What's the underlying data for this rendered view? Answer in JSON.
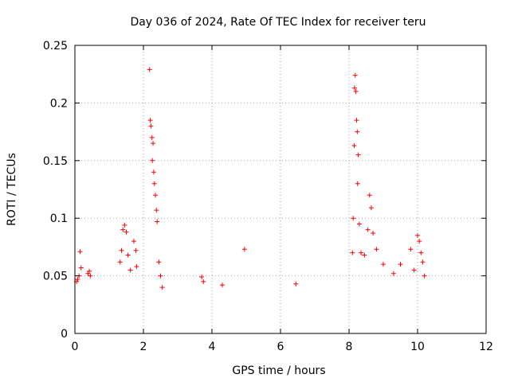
{
  "chart_data": {
    "type": "scatter",
    "title": "Day 036 of 2024, Rate Of TEC Index for receiver teru",
    "xlabel": "GPS time / hours",
    "ylabel": "ROTI / TECUs",
    "xlim": [
      0,
      12
    ],
    "ylim": [
      0,
      0.25
    ],
    "x_ticks": [
      "0",
      "2",
      "4",
      "6",
      "8",
      "10",
      "12"
    ],
    "y_ticks": [
      "0",
      "0.05",
      "0.1",
      "0.15",
      "0.2",
      "0.25"
    ],
    "grid": true,
    "marker": "+",
    "color": "#ff0000",
    "series": [
      {
        "name": "ROTI",
        "points": [
          [
            0.05,
            0.045
          ],
          [
            0.08,
            0.047
          ],
          [
            0.12,
            0.05
          ],
          [
            0.15,
            0.071
          ],
          [
            0.18,
            0.057
          ],
          [
            0.38,
            0.052
          ],
          [
            0.42,
            0.054
          ],
          [
            0.45,
            0.05
          ],
          [
            1.32,
            0.062
          ],
          [
            1.36,
            0.072
          ],
          [
            1.4,
            0.09
          ],
          [
            1.45,
            0.094
          ],
          [
            1.5,
            0.088
          ],
          [
            1.55,
            0.068
          ],
          [
            1.62,
            0.055
          ],
          [
            1.72,
            0.08
          ],
          [
            1.78,
            0.072
          ],
          [
            1.8,
            0.058
          ],
          [
            2.18,
            0.229
          ],
          [
            2.2,
            0.185
          ],
          [
            2.22,
            0.18
          ],
          [
            2.25,
            0.17
          ],
          [
            2.26,
            0.15
          ],
          [
            2.28,
            0.165
          ],
          [
            2.3,
            0.14
          ],
          [
            2.32,
            0.13
          ],
          [
            2.35,
            0.12
          ],
          [
            2.38,
            0.107
          ],
          [
            2.4,
            0.097
          ],
          [
            2.45,
            0.062
          ],
          [
            2.5,
            0.05
          ],
          [
            2.55,
            0.04
          ],
          [
            3.7,
            0.049
          ],
          [
            3.75,
            0.045
          ],
          [
            4.3,
            0.042
          ],
          [
            4.95,
            0.073
          ],
          [
            6.45,
            0.043
          ],
          [
            8.1,
            0.07
          ],
          [
            8.12,
            0.1
          ],
          [
            8.15,
            0.163
          ],
          [
            8.16,
            0.213
          ],
          [
            8.18,
            0.224
          ],
          [
            8.2,
            0.21
          ],
          [
            8.22,
            0.185
          ],
          [
            8.24,
            0.175
          ],
          [
            8.25,
            0.13
          ],
          [
            8.27,
            0.155
          ],
          [
            8.3,
            0.095
          ],
          [
            8.35,
            0.07
          ],
          [
            8.45,
            0.068
          ],
          [
            8.55,
            0.09
          ],
          [
            8.6,
            0.12
          ],
          [
            8.65,
            0.109
          ],
          [
            8.7,
            0.087
          ],
          [
            8.8,
            0.073
          ],
          [
            9.0,
            0.06
          ],
          [
            9.3,
            0.052
          ],
          [
            9.5,
            0.06
          ],
          [
            9.8,
            0.073
          ],
          [
            9.9,
            0.055
          ],
          [
            10.0,
            0.085
          ],
          [
            10.05,
            0.08
          ],
          [
            10.1,
            0.07
          ],
          [
            10.15,
            0.062
          ],
          [
            10.2,
            0.05
          ]
        ]
      }
    ]
  }
}
